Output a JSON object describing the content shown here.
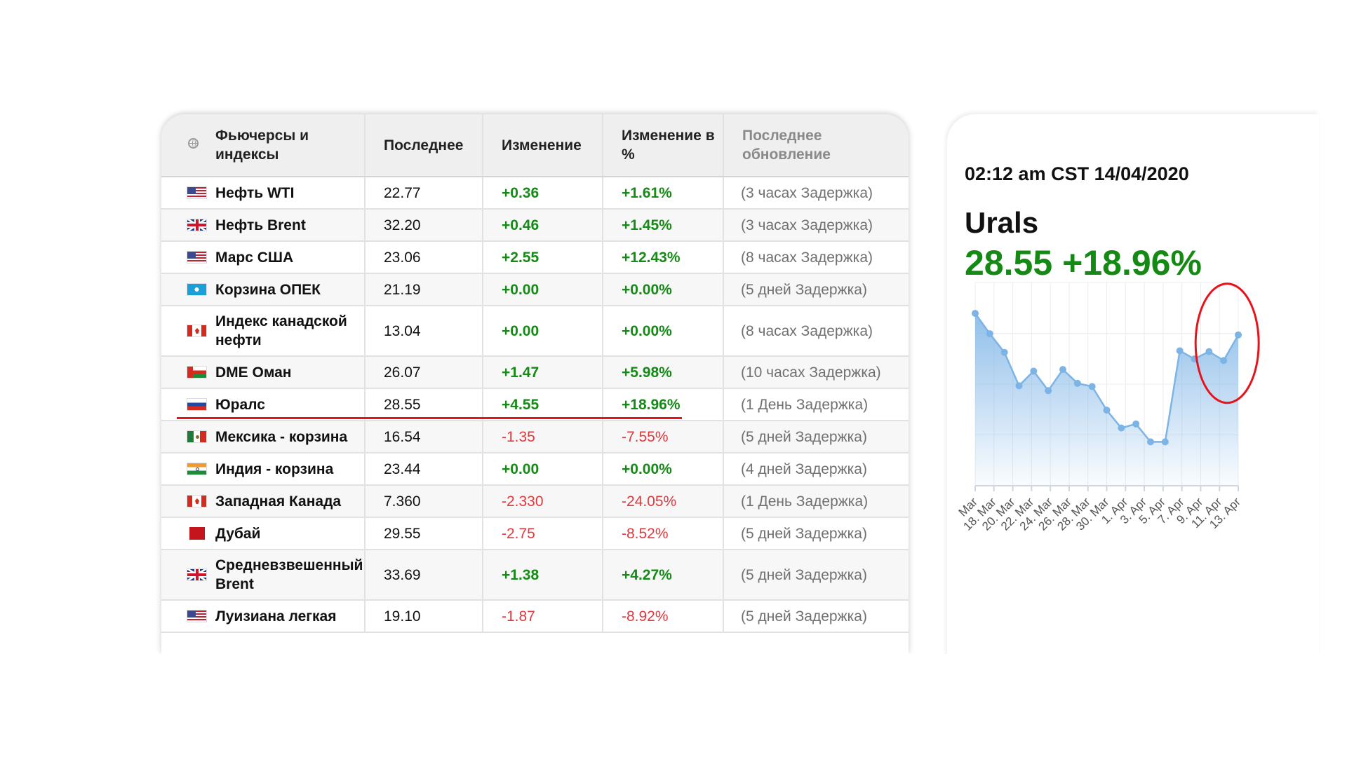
{
  "table": {
    "headers": {
      "name": "Фьючерсы и индексы",
      "last": "Последнее",
      "change": "Изменение",
      "change_pct": "Изменение в %",
      "updated": "Последнее обновление"
    },
    "rows": [
      {
        "flag": "us-flag",
        "name": "Нефть WTI",
        "last": "22.77",
        "change": "+0.36",
        "change_pct": "+1.61%",
        "updated": "(3 часах Задержка)",
        "direction": "up"
      },
      {
        "flag": "uk-flag",
        "name": "Нефть Brent",
        "last": "32.20",
        "change": "+0.46",
        "change_pct": "+1.45%",
        "updated": "(3 часах Задержка)",
        "direction": "up"
      },
      {
        "flag": "us-flag",
        "name": "Марс США",
        "last": "23.06",
        "change": "+2.55",
        "change_pct": "+12.43%",
        "updated": "(8 часах Задержка)",
        "direction": "up"
      },
      {
        "flag": "opec-flag",
        "name": "Корзина ОПЕК",
        "last": "21.19",
        "change": "+0.00",
        "change_pct": "+0.00%",
        "updated": "(5 дней Задержка)",
        "direction": "up"
      },
      {
        "flag": "canada-flag",
        "name": "Индекс канадской нефти",
        "last": "13.04",
        "change": "+0.00",
        "change_pct": "+0.00%",
        "updated": "(8 часах Задержка)",
        "direction": "up"
      },
      {
        "flag": "oman-flag",
        "name": "DME Оман",
        "last": "26.07",
        "change": "+1.47",
        "change_pct": "+5.98%",
        "updated": "(10 часах Задержка)",
        "direction": "up"
      },
      {
        "flag": "russia-flag",
        "name": "Юралс",
        "last": "28.55",
        "change": "+4.55",
        "change_pct": "+18.96%",
        "updated": "(1 День Задержка)",
        "direction": "up"
      },
      {
        "flag": "mexico-flag",
        "name": "Мексика - корзина",
        "last": "16.54",
        "change": "-1.35",
        "change_pct": "-7.55%",
        "updated": "(5 дней Задержка)",
        "direction": "down"
      },
      {
        "flag": "india-flag",
        "name": "Индия - корзина",
        "last": "23.44",
        "change": "+0.00",
        "change_pct": "+0.00%",
        "updated": "(4 дней Задержка)",
        "direction": "up"
      },
      {
        "flag": "canada-flag",
        "name": "Западная Канада",
        "last": "7.360",
        "change": "-2.330",
        "change_pct": "-24.05%",
        "updated": "(1 День Задержка)",
        "direction": "down"
      },
      {
        "flag": "dubai-flag",
        "name": "Дубай",
        "last": "29.55",
        "change": "-2.75",
        "change_pct": "-8.52%",
        "updated": "(5 дней Задержка)",
        "direction": "down"
      },
      {
        "flag": "uk-flag",
        "name": "Средневзвешенный Brent",
        "last": "33.69",
        "change": "+1.38",
        "change_pct": "+4.27%",
        "updated": "(5 дней Задержка)",
        "direction": "up"
      },
      {
        "flag": "us-flag",
        "name": "Луизиана легкая",
        "last": "19.10",
        "change": "-1.87",
        "change_pct": "-8.92%",
        "updated": "(5 дней Задержка)",
        "direction": "down"
      }
    ],
    "highlighted_row": "Юралс",
    "highlight_color": "#e8131a"
  },
  "quote": {
    "timestamp": "02:12 am CST 14/04/2020",
    "symbol": "Urals",
    "price": "28.55",
    "change_pct": "+18.96%",
    "color": "#148a14"
  },
  "colors": {
    "positive": "#168a16",
    "negative": "#e0393e",
    "line": "#7db4e6",
    "annotation": "#e8131a"
  },
  "chart_data": {
    "type": "area",
    "series": [
      {
        "values": [
          31.2,
          28.7,
          26.4,
          22.3,
          24.1,
          21.7,
          24.3,
          22.6,
          22.2,
          19.3,
          17.1,
          17.6,
          15.4,
          15.4,
          26.6,
          25.6,
          26.5,
          25.4,
          28.55
        ]
      }
    ],
    "tick_labels": [
      "Mar",
      "18. Mar",
      "20. Mar",
      "22. Mar",
      "24. Mar",
      "26. Mar",
      "28. Mar",
      "30. Mar",
      "1. Apr",
      "3. Apr",
      "5. Apr",
      "7. Apr",
      "9. Apr",
      "11. Apr",
      "13. Apr"
    ],
    "ylim": [
      10,
      35
    ],
    "grid": true,
    "annotation": "circle around the final rise"
  }
}
